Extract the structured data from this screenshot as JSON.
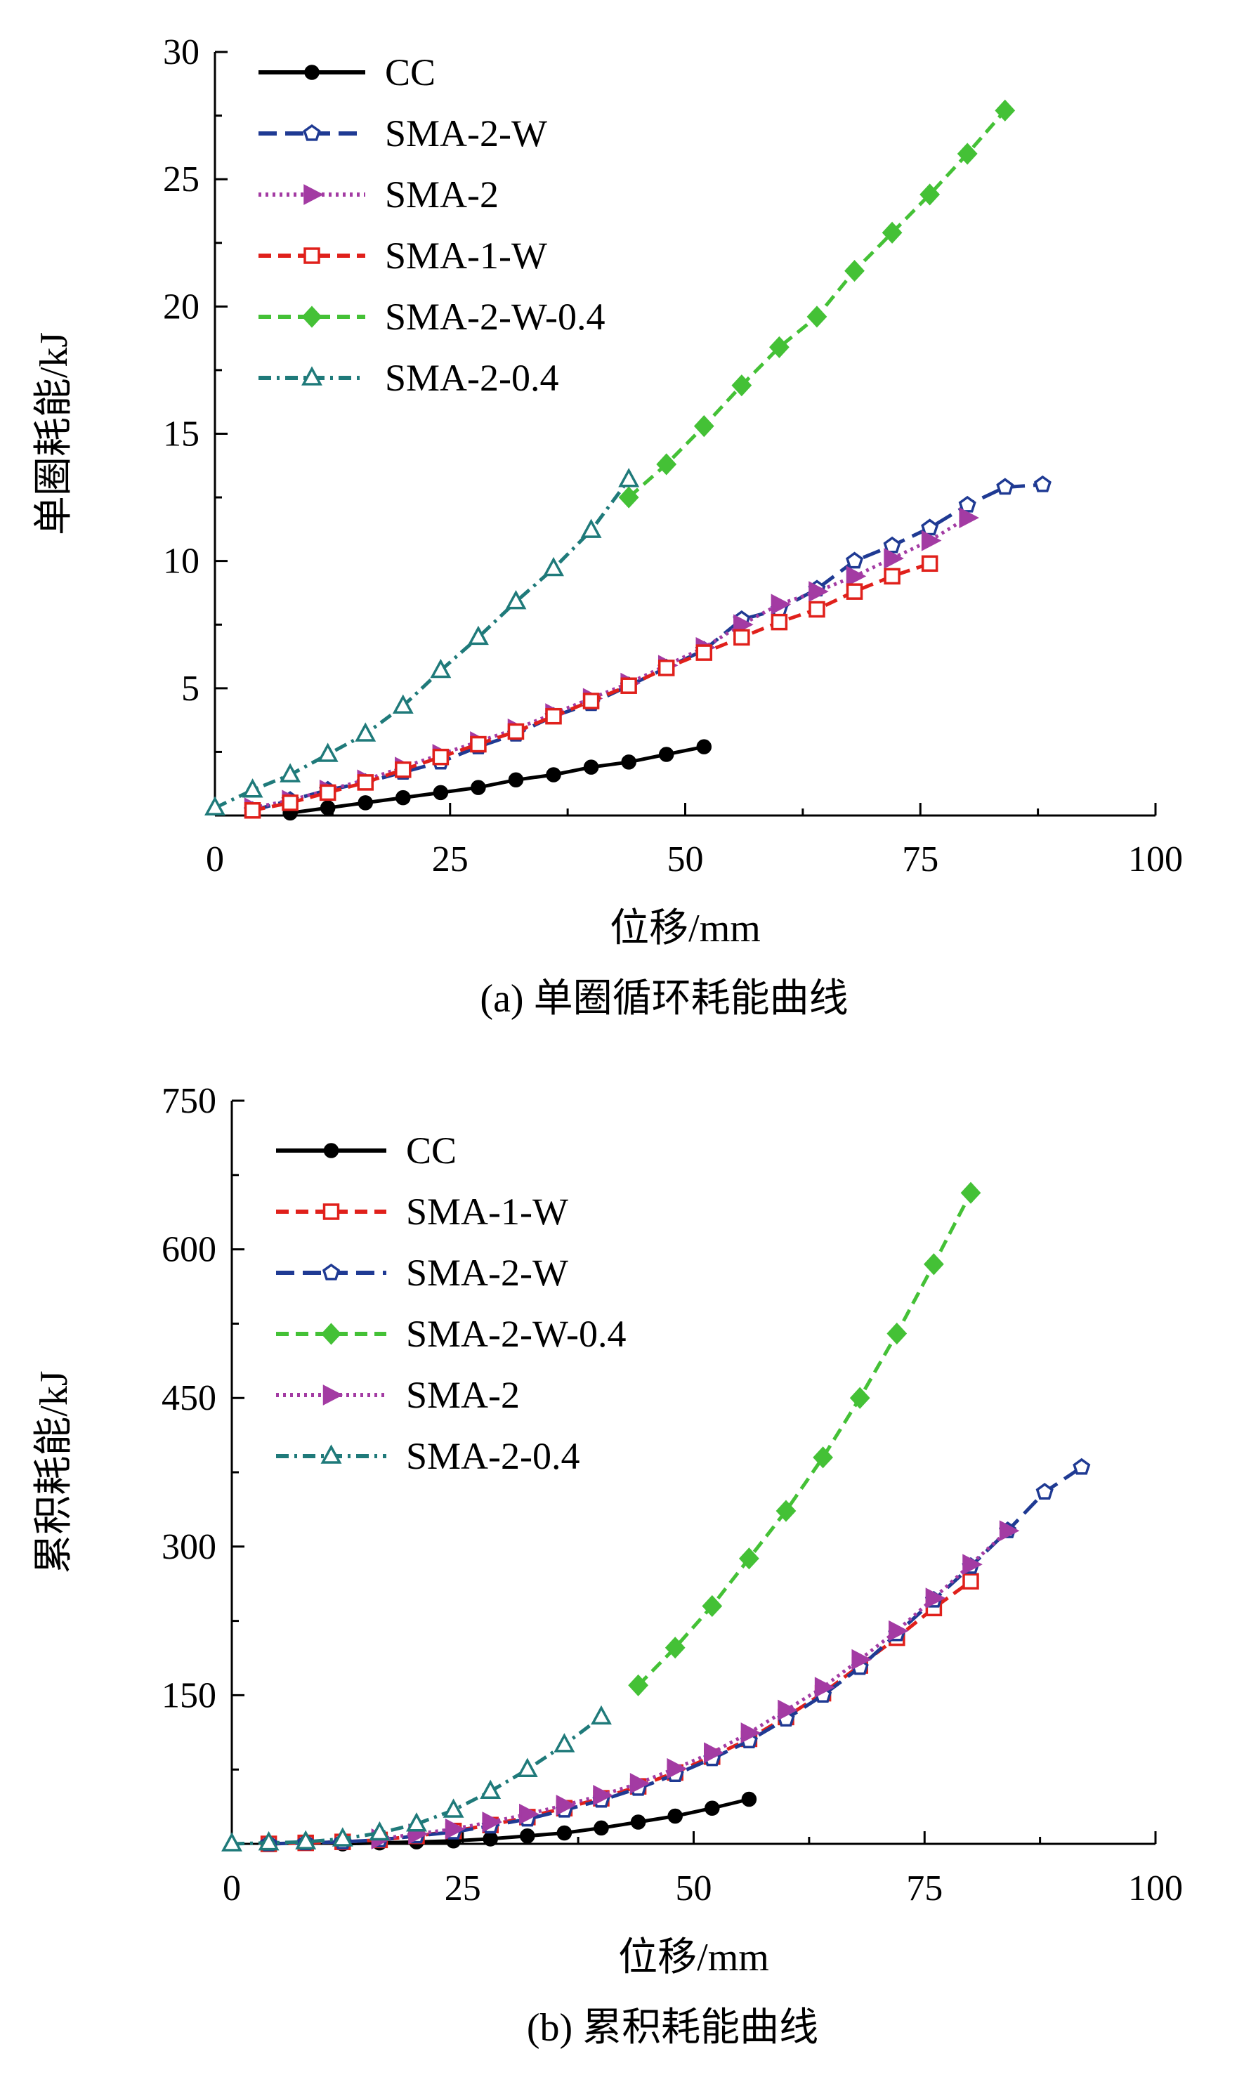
{
  "chart_data": [
    {
      "type": "line",
      "caption": "(a) 单圈循环耗能曲线",
      "xlabel": "位移/mm",
      "ylabel": "单圈耗能/kJ",
      "xlim": [
        0,
        100
      ],
      "ylim": [
        0,
        30
      ],
      "xticks": [
        "0",
        "25",
        "50",
        "75",
        "100"
      ],
      "yticks": [
        "5",
        "10",
        "15",
        "20",
        "25",
        "30"
      ],
      "legend_position": "top-left",
      "series": [
        {
          "name": "CC",
          "color": "#000000",
          "dash": "solid",
          "marker": "filled-circle",
          "x": [
            8,
            12,
            16,
            20,
            24,
            28,
            32,
            36,
            40,
            44,
            48,
            52
          ],
          "y": [
            0.1,
            0.3,
            0.5,
            0.7,
            0.9,
            1.1,
            1.4,
            1.6,
            1.9,
            2.1,
            2.4,
            2.7
          ]
        },
        {
          "name": "SMA-2-W",
          "color": "#1f3a93",
          "dash": "long-dash",
          "marker": "open-pentagon",
          "x": [
            4,
            8,
            12,
            16,
            20,
            24,
            28,
            32,
            36,
            40,
            44,
            48,
            52,
            56,
            60,
            64,
            68,
            72,
            76,
            80,
            84,
            88
          ],
          "y": [
            0.2,
            0.6,
            1.0,
            1.3,
            1.7,
            2.1,
            2.7,
            3.2,
            3.9,
            4.4,
            5.1,
            5.8,
            6.5,
            7.7,
            8.1,
            8.9,
            10.0,
            10.6,
            11.3,
            12.2,
            12.9,
            13.0
          ]
        },
        {
          "name": "SMA-2",
          "color": "#a33ba3",
          "dash": "dotted",
          "marker": "filled-triangle-right",
          "x": [
            4,
            8,
            12,
            16,
            20,
            24,
            28,
            32,
            36,
            40,
            44,
            48,
            52,
            56,
            60,
            64,
            68,
            72,
            76,
            80
          ],
          "y": [
            0.3,
            0.6,
            1.0,
            1.4,
            1.9,
            2.4,
            2.9,
            3.4,
            4.0,
            4.6,
            5.2,
            5.9,
            6.6,
            7.5,
            8.3,
            8.8,
            9.4,
            10.1,
            10.8,
            11.7
          ]
        },
        {
          "name": "SMA-1-W",
          "color": "#e0201b",
          "dash": "dashed",
          "marker": "open-square",
          "x": [
            4,
            8,
            12,
            16,
            20,
            24,
            28,
            32,
            36,
            40,
            44,
            48,
            52,
            56,
            60,
            64,
            68,
            72,
            76
          ],
          "y": [
            0.2,
            0.5,
            0.9,
            1.3,
            1.8,
            2.3,
            2.8,
            3.3,
            3.9,
            4.5,
            5.1,
            5.8,
            6.4,
            7.0,
            7.6,
            8.1,
            8.8,
            9.4,
            9.9
          ]
        },
        {
          "name": "SMA-2-W-0.4",
          "color": "#44c136",
          "dash": "dashed",
          "marker": "filled-diamond",
          "x": [
            44,
            48,
            52,
            56,
            60,
            64,
            68,
            72,
            76,
            80,
            84
          ],
          "y": [
            12.5,
            13.8,
            15.3,
            16.9,
            18.4,
            19.6,
            21.4,
            22.9,
            24.4,
            26.0,
            27.7
          ]
        },
        {
          "name": "SMA-2-0.4",
          "color": "#1f7a7a",
          "dash": "dash-dot",
          "marker": "open-triangle",
          "x": [
            0,
            4,
            8,
            12,
            16,
            20,
            24,
            28,
            32,
            36,
            40,
            44
          ],
          "y": [
            0.3,
            1.0,
            1.6,
            2.4,
            3.2,
            4.3,
            5.7,
            7.0,
            8.4,
            9.7,
            11.2,
            13.2
          ]
        }
      ]
    },
    {
      "type": "line",
      "caption": "(b) 累积耗能曲线",
      "xlabel": "位移/mm",
      "ylabel": "累积耗能/kJ",
      "xlim": [
        0,
        100
      ],
      "ylim": [
        0,
        750
      ],
      "xticks": [
        "0",
        "25",
        "50",
        "75",
        "100"
      ],
      "yticks": [
        "150",
        "300",
        "450",
        "600",
        "750"
      ],
      "legend_position": "top-left",
      "series": [
        {
          "name": "CC",
          "color": "#000000",
          "dash": "solid",
          "marker": "filled-circle",
          "x": [
            12,
            16,
            20,
            24,
            28,
            32,
            36,
            40,
            44,
            48,
            52,
            56
          ],
          "y": [
            0,
            1,
            2,
            3,
            5,
            8,
            11,
            16,
            22,
            28,
            36,
            45
          ]
        },
        {
          "name": "SMA-1-W",
          "color": "#e0201b",
          "dash": "dashed",
          "marker": "open-square",
          "x": [
            4,
            8,
            12,
            16,
            20,
            24,
            28,
            32,
            36,
            40,
            44,
            48,
            52,
            56,
            60,
            64,
            68,
            72,
            76,
            80
          ],
          "y": [
            0,
            1,
            2,
            4,
            8,
            13,
            19,
            27,
            36,
            46,
            58,
            72,
            88,
            106,
            128,
            152,
            180,
            208,
            238,
            265
          ]
        },
        {
          "name": "SMA-2-W",
          "color": "#1f3a93",
          "dash": "long-dash",
          "marker": "open-pentagon",
          "x": [
            4,
            8,
            12,
            16,
            20,
            24,
            28,
            32,
            36,
            40,
            44,
            48,
            52,
            56,
            60,
            64,
            68,
            72,
            76,
            80,
            84,
            88,
            92
          ],
          "y": [
            0,
            1,
            2,
            4,
            8,
            12,
            18,
            25,
            34,
            44,
            56,
            70,
            86,
            104,
            126,
            150,
            178,
            212,
            246,
            280,
            316,
            355,
            380
          ]
        },
        {
          "name": "SMA-2-W-0.4",
          "color": "#44c136",
          "dash": "dashed",
          "marker": "filled-diamond",
          "x": [
            44,
            48,
            52,
            56,
            60,
            64,
            68,
            72,
            76,
            80
          ],
          "y": [
            160,
            198,
            240,
            288,
            336,
            390,
            450,
            515,
            585,
            657
          ]
        },
        {
          "name": "SMA-2",
          "color": "#a33ba3",
          "dash": "dotted",
          "marker": "filled-triangle-right",
          "x": [
            16,
            20,
            24,
            28,
            32,
            36,
            40,
            44,
            48,
            52,
            56,
            60,
            64,
            68,
            72,
            76,
            80,
            84
          ],
          "y": [
            5,
            10,
            15,
            22,
            30,
            39,
            49,
            61,
            76,
            92,
            112,
            135,
            158,
            186,
            215,
            248,
            282,
            316
          ]
        },
        {
          "name": "SMA-2-0.4",
          "color": "#1f7a7a",
          "dash": "dash-dot",
          "marker": "open-triangle",
          "x": [
            0,
            4,
            8,
            12,
            16,
            20,
            24,
            28,
            32,
            36,
            40
          ],
          "y": [
            0,
            1,
            2,
            5,
            11,
            20,
            34,
            53,
            75,
            100,
            128
          ]
        }
      ]
    }
  ]
}
